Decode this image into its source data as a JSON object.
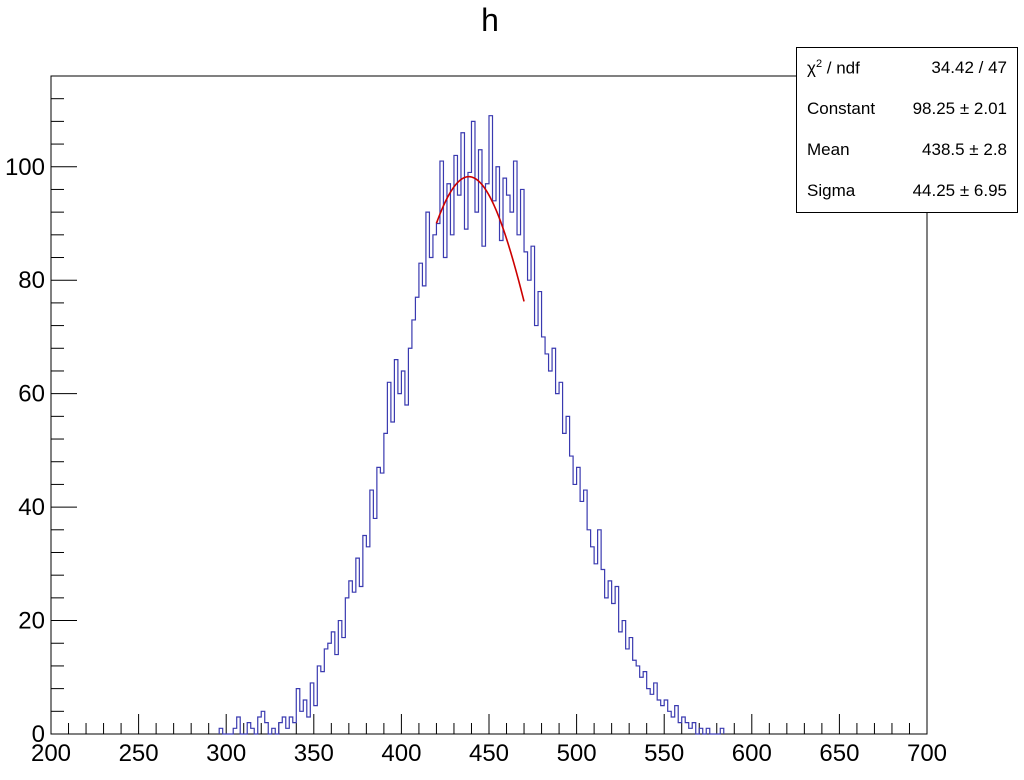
{
  "chart_data": {
    "type": "histogram",
    "title": "h",
    "xlim": [
      200,
      700
    ],
    "ylim": [
      0,
      116
    ],
    "x_ticks": [
      200,
      250,
      300,
      350,
      400,
      450,
      500,
      550,
      600,
      650,
      700
    ],
    "x_tick_labels": [
      "200",
      "250",
      "300",
      "350",
      "400",
      "450",
      "500",
      "550",
      "600",
      "650",
      "700"
    ],
    "y_ticks": [
      0,
      20,
      40,
      60,
      80,
      100
    ],
    "y_tick_labels": [
      "0",
      "20",
      "40",
      "60",
      "80",
      "100"
    ],
    "bin_width": 2,
    "series": [
      {
        "color": "#3a3ab0",
        "bins": [
          [
            296,
            1
          ],
          [
            298,
            0
          ],
          [
            300,
            0
          ],
          [
            302,
            0
          ],
          [
            304,
            1
          ],
          [
            306,
            3
          ],
          [
            308,
            0
          ],
          [
            310,
            0
          ],
          [
            312,
            2
          ],
          [
            314,
            1
          ],
          [
            316,
            0
          ],
          [
            318,
            3
          ],
          [
            320,
            4
          ],
          [
            322,
            2
          ],
          [
            324,
            0
          ],
          [
            326,
            1
          ],
          [
            328,
            0
          ],
          [
            330,
            2
          ],
          [
            332,
            3
          ],
          [
            334,
            1
          ],
          [
            336,
            3
          ],
          [
            338,
            2
          ],
          [
            340,
            8
          ],
          [
            342,
            4
          ],
          [
            344,
            6
          ],
          [
            346,
            3
          ],
          [
            348,
            9
          ],
          [
            350,
            5
          ],
          [
            352,
            12
          ],
          [
            354,
            11
          ],
          [
            356,
            15
          ],
          [
            358,
            16
          ],
          [
            360,
            18
          ],
          [
            362,
            14
          ],
          [
            364,
            20
          ],
          [
            366,
            17
          ],
          [
            368,
            24
          ],
          [
            370,
            27
          ],
          [
            372,
            25
          ],
          [
            374,
            31
          ],
          [
            376,
            26
          ],
          [
            378,
            35
          ],
          [
            380,
            33
          ],
          [
            382,
            43
          ],
          [
            384,
            38
          ],
          [
            386,
            47
          ],
          [
            388,
            46
          ],
          [
            390,
            53
          ],
          [
            392,
            62
          ],
          [
            394,
            55
          ],
          [
            396,
            66
          ],
          [
            398,
            60
          ],
          [
            400,
            64
          ],
          [
            402,
            58
          ],
          [
            404,
            68
          ],
          [
            406,
            73
          ],
          [
            408,
            77
          ],
          [
            410,
            83
          ],
          [
            412,
            79
          ],
          [
            414,
            92
          ],
          [
            416,
            84
          ],
          [
            418,
            88
          ],
          [
            420,
            90
          ],
          [
            422,
            101
          ],
          [
            424,
            84
          ],
          [
            426,
            97
          ],
          [
            428,
            88
          ],
          [
            430,
            102
          ],
          [
            432,
            95
          ],
          [
            434,
            106
          ],
          [
            436,
            89
          ],
          [
            438,
            99
          ],
          [
            440,
            108
          ],
          [
            442,
            92
          ],
          [
            444,
            103
          ],
          [
            446,
            86
          ],
          [
            448,
            97
          ],
          [
            450,
            109
          ],
          [
            452,
            94
          ],
          [
            454,
            100
          ],
          [
            456,
            87
          ],
          [
            458,
            98
          ],
          [
            460,
            95
          ],
          [
            462,
            92
          ],
          [
            464,
            101
          ],
          [
            466,
            88
          ],
          [
            468,
            96
          ],
          [
            470,
            85
          ],
          [
            472,
            80
          ],
          [
            474,
            86
          ],
          [
            476,
            72
          ],
          [
            478,
            78
          ],
          [
            480,
            70
          ],
          [
            482,
            67
          ],
          [
            484,
            64
          ],
          [
            486,
            68
          ],
          [
            488,
            60
          ],
          [
            490,
            62
          ],
          [
            492,
            53
          ],
          [
            494,
            56
          ],
          [
            496,
            49
          ],
          [
            498,
            44
          ],
          [
            500,
            47
          ],
          [
            502,
            41
          ],
          [
            504,
            43
          ],
          [
            506,
            36
          ],
          [
            508,
            33
          ],
          [
            510,
            30
          ],
          [
            512,
            36
          ],
          [
            514,
            29
          ],
          [
            516,
            24
          ],
          [
            518,
            27
          ],
          [
            520,
            23
          ],
          [
            522,
            26
          ],
          [
            524,
            18
          ],
          [
            526,
            20
          ],
          [
            528,
            15
          ],
          [
            530,
            17
          ],
          [
            532,
            13
          ],
          [
            534,
            12
          ],
          [
            536,
            10
          ],
          [
            538,
            11
          ],
          [
            540,
            8
          ],
          [
            542,
            7
          ],
          [
            544,
            9
          ],
          [
            546,
            6
          ],
          [
            548,
            5
          ],
          [
            550,
            6
          ],
          [
            552,
            4
          ],
          [
            554,
            3
          ],
          [
            556,
            5
          ],
          [
            558,
            2
          ],
          [
            560,
            3
          ],
          [
            562,
            2
          ],
          [
            564,
            1
          ],
          [
            566,
            2
          ],
          [
            568,
            0
          ],
          [
            570,
            1
          ],
          [
            572,
            0
          ],
          [
            574,
            1
          ],
          [
            576,
            0
          ],
          [
            578,
            0
          ],
          [
            580,
            0
          ],
          [
            582,
            1
          ]
        ]
      }
    ],
    "fit": {
      "function": "gaus",
      "color": "#cc0000",
      "range": [
        420,
        470
      ],
      "constant": 98.25,
      "mean": 438.5,
      "sigma": 44.25
    },
    "legend_position": "top-right",
    "grid": false,
    "stats_box": {
      "rows": [
        {
          "label_main": "χ",
          "label_sup": "2",
          "label_rest": " / ndf",
          "value": "34.42 / 47"
        },
        {
          "label": "Constant",
          "value": "98.25 ± 2.01"
        },
        {
          "label": "Mean",
          "value": "438.5 ± 2.8"
        },
        {
          "label": "Sigma",
          "value": "44.25 ± 6.95"
        }
      ]
    }
  }
}
